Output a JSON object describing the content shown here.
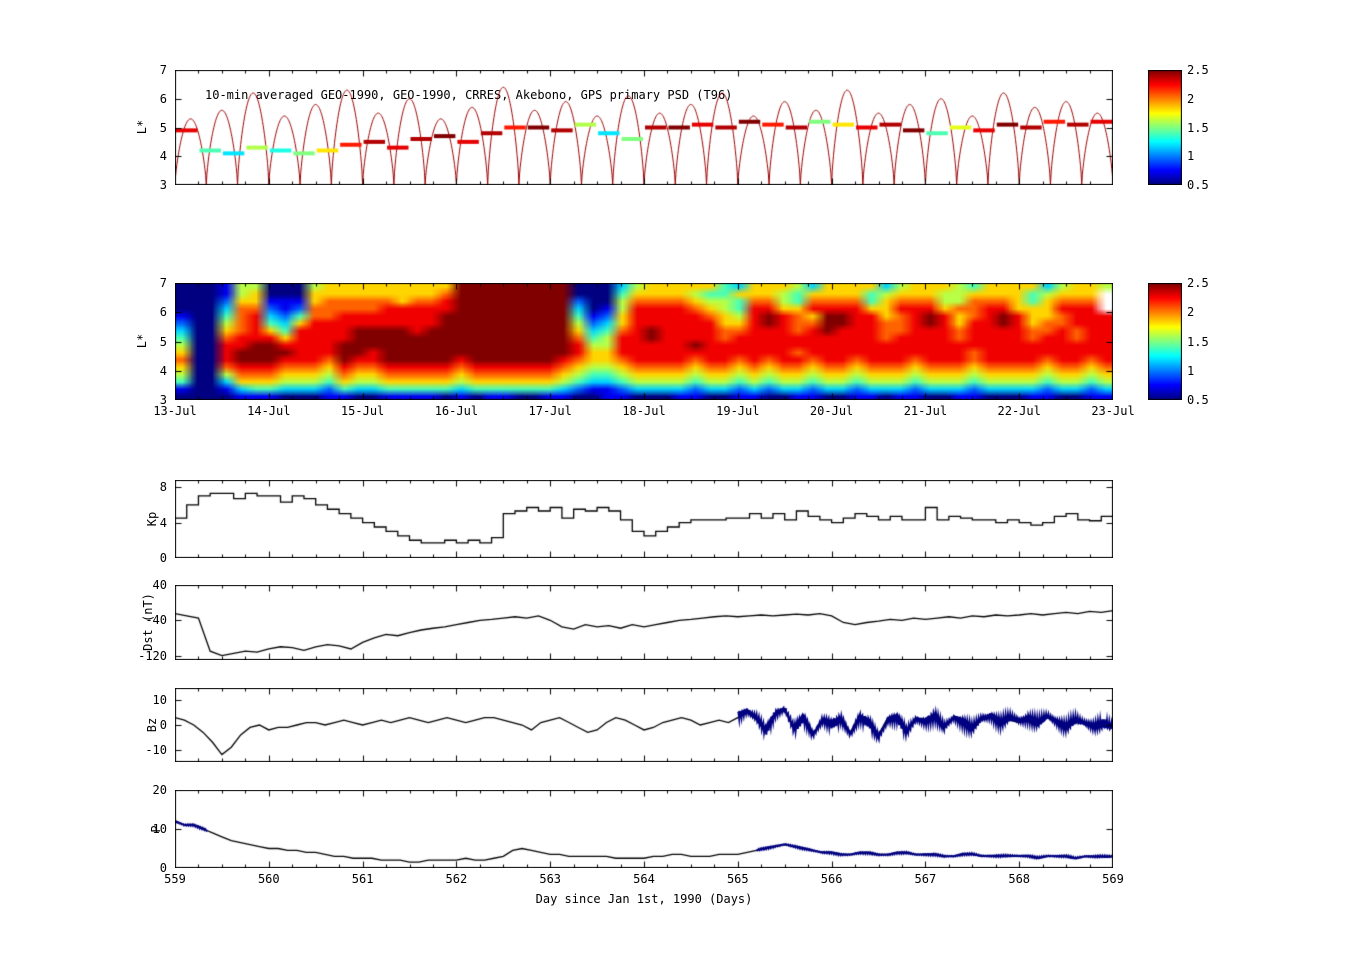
{
  "labels": {
    "panel1_title": "10-min averaged GEO-1990, GEO-1990, CRRES, Akebono, GPS  primary PSD (T96)",
    "xlabel": "Day since Jan 1st, 1990 (Days)",
    "ylabel_psd_scatter": "L*",
    "ylabel_psd_heatmap": "L*",
    "ylabel_kp": "Kp",
    "ylabel_dst": "Dst (nT)",
    "ylabel_bz": "Bz",
    "ylabel_p": "P"
  },
  "colorbar": {
    "tick_labels": [
      "2.5",
      "2",
      "1.5",
      "1",
      "0.5"
    ],
    "vmin": 0.5,
    "vmax": 2.5,
    "colormap": "jet"
  },
  "axes": {
    "xlim": [
      559,
      569
    ],
    "x_day_labels": [
      "559",
      "560",
      "561",
      "562",
      "563",
      "564",
      "565",
      "566",
      "567",
      "568",
      "569"
    ],
    "x_date_labels": [
      "13-Jul",
      "14-Jul",
      "15-Jul",
      "16-Jul",
      "17-Jul",
      "18-Jul",
      "19-Jul",
      "20-Jul",
      "21-Jul",
      "22-Jul",
      "23-Jul"
    ]
  },
  "chart_data": [
    {
      "name": "psd_scatter",
      "type": "scatter",
      "title": "10-min averaged GEO-1990, GEO-1990, CRRES, Akebono, GPS  primary PSD (T96)",
      "ylabel": "L*",
      "ylim": [
        3,
        7
      ],
      "yticks": [
        7,
        6,
        5,
        4,
        3
      ],
      "clim": [
        0.5,
        2.5
      ],
      "orbit_period_days": 0.3333,
      "orbit_peaks": [
        5.3,
        5.6,
        6.2,
        5.4,
        5.8,
        6.3,
        5.5,
        6.0,
        5.3,
        5.7,
        6.4,
        5.6,
        5.9,
        5.4,
        6.1,
        5.5,
        5.8,
        6.2,
        5.4,
        5.9,
        5.6,
        6.3,
        5.5,
        5.8,
        6.0,
        5.4,
        6.2,
        5.7,
        5.9,
        5.5
      ],
      "steps": {
        "dt_days": 0.25,
        "L": [
          4.9,
          4.2,
          4.1,
          4.3,
          4.2,
          4.1,
          4.2,
          4.4,
          4.5,
          4.3,
          4.6,
          4.7,
          4.5,
          4.8,
          5.0,
          5.0,
          4.9,
          5.1,
          4.8,
          4.6,
          5.0,
          5.0,
          5.1,
          5.0,
          5.2,
          5.1,
          5.0,
          5.2,
          5.1,
          5.0,
          5.1,
          4.9,
          4.8,
          5.0,
          4.9,
          5.1,
          5.0,
          5.2,
          5.1,
          5.2
        ],
        "psd": [
          2.3,
          1.4,
          1.2,
          1.6,
          1.3,
          1.5,
          1.8,
          2.2,
          2.4,
          2.3,
          2.4,
          2.5,
          2.3,
          2.4,
          2.2,
          2.5,
          2.4,
          1.6,
          1.2,
          1.5,
          2.4,
          2.5,
          2.3,
          2.4,
          2.5,
          2.2,
          2.4,
          1.5,
          1.8,
          2.3,
          2.4,
          2.5,
          1.4,
          1.7,
          2.3,
          2.5,
          2.4,
          2.2,
          2.4,
          2.3
        ]
      }
    },
    {
      "name": "psd_heatmap",
      "type": "heatmap",
      "ylabel": "L*",
      "ylim": [
        3,
        7
      ],
      "yticks": [
        7,
        6,
        5,
        4,
        3
      ],
      "clim": [
        0.5,
        2.5
      ],
      "value_encoding": "digit 0-9 maps linearly to PSD 0.5-2.5",
      "rows_top_to_bottom": [
        "0001550005666666666999999990003566666436665366663566654666635665",
        "000156000666666666799999999000466665446665466664566655666645666",
        "0002661116777776778999999992005777765547754777746777557 77646777",
        "0003772127777788888999999993015888876548866888866888677 88666888",
        "1004783247788888889999999994126888887658987699886789867898667888",
        "2005784368888888889999999995236888888668987799887789868898677888",
        "3006786488889999899999999996347898888778887898887788878888778788",
        "4007888688889999999999999997458898888788888888887888878888788788",
        "5008899888899999999999999998558888898888888888888888888888888888",
        "6008999988899899999999999998668888888888887888888888887888888888",
        "7008999888798899999899999987667888878878788788788878887888878878",
        "6007888777687788888788888876556777767767677677677767776777767767",
        "5005777666576677777677777765445666656656566566566656665666656656",
        "4003666555465566666566666654334555545545455455455545554555545545",
        "1001344333243344444344444432112333323323233233233323332333323323",
        "0000111000110011110101100110011000110011001100110110011000110011"
      ]
    },
    {
      "name": "kp",
      "type": "line",
      "style": "step",
      "ylabel": "Kp",
      "ylim": [
        0,
        8.8
      ],
      "yticks": [
        8,
        4,
        0
      ],
      "dt_days": 0.125,
      "t_start": 559,
      "values": [
        4.5,
        6.0,
        7.0,
        7.3,
        7.3,
        6.7,
        7.3,
        7.0,
        7.0,
        6.3,
        7.0,
        6.7,
        6.0,
        5.5,
        5.0,
        4.5,
        4.0,
        3.5,
        3.0,
        2.5,
        2.0,
        1.7,
        1.7,
        2.0,
        1.7,
        2.0,
        1.7,
        2.3,
        5.0,
        5.3,
        5.7,
        5.3,
        5.7,
        4.5,
        5.5,
        5.3,
        5.7,
        5.3,
        4.3,
        3.0,
        2.5,
        3.0,
        3.5,
        4.0,
        4.3,
        4.3,
        4.3,
        4.5,
        4.5,
        5.0,
        4.5,
        5.0,
        4.3,
        5.3,
        4.7,
        4.3,
        4.0,
        4.5,
        5.0,
        4.7,
        4.3,
        4.7,
        4.3,
        4.3,
        5.7,
        4.3,
        4.7,
        4.5,
        4.3,
        4.3,
        4.0,
        4.3,
        4.0,
        3.7,
        4.0,
        4.7,
        5.0,
        4.3,
        4.2,
        4.7
      ]
    },
    {
      "name": "dst",
      "type": "line",
      "ylabel": "Dst (nT)",
      "ylim": [
        -130,
        40
      ],
      "yticks": [
        40,
        -40,
        -120
      ],
      "dt_days": 0.125,
      "t_start": 559,
      "values": [
        -25,
        -30,
        -35,
        -110,
        -120,
        -115,
        -110,
        -112,
        -105,
        -100,
        -102,
        -108,
        -100,
        -95,
        -98,
        -105,
        -90,
        -80,
        -72,
        -75,
        -68,
        -62,
        -58,
        -55,
        -50,
        -45,
        -40,
        -38,
        -35,
        -32,
        -35,
        -30,
        -40,
        -55,
        -60,
        -50,
        -55,
        -52,
        -58,
        -50,
        -55,
        -50,
        -45,
        -40,
        -38,
        -35,
        -32,
        -30,
        -32,
        -30,
        -28,
        -30,
        -28,
        -26,
        -28,
        -25,
        -30,
        -45,
        -50,
        -45,
        -42,
        -38,
        -40,
        -35,
        -38,
        -35,
        -32,
        -35,
        -30,
        -32,
        -28,
        -30,
        -28,
        -25,
        -28,
        -25,
        -22,
        -25,
        -20,
        -22,
        -18
      ]
    },
    {
      "name": "bz",
      "type": "line",
      "ylabel": "Bz",
      "ylim": [
        -15,
        15
      ],
      "yticks": [
        10,
        0,
        -10
      ],
      "dt_days": 0.1,
      "t_start": 559,
      "values": [
        3,
        2,
        0,
        -3,
        -7,
        -12,
        -9,
        -4,
        -1,
        0,
        -2,
        -1,
        -1,
        0,
        1,
        1,
        0,
        1,
        2,
        1,
        0,
        1,
        2,
        1,
        2,
        3,
        2,
        1,
        2,
        3,
        2,
        1,
        2,
        3,
        3,
        2,
        1,
        0,
        -2,
        1,
        2,
        3,
        1,
        -1,
        -3,
        -2,
        1,
        3,
        2,
        0,
        -2,
        -1,
        1,
        2,
        3,
        2,
        0,
        1,
        2,
        1,
        3,
        5,
        2,
        -3,
        4,
        6,
        -2,
        3,
        -4,
        2,
        1,
        3,
        -3,
        4,
        2,
        -4,
        3,
        4,
        -2,
        3,
        2,
        4,
        -1,
        3,
        1,
        -2,
        2,
        3,
        0,
        2,
        1,
        2,
        0,
        3,
        1,
        -1,
        2,
        1,
        0,
        1,
        0
      ],
      "noisy_ranges": [
        [
          565.0,
          569.0
        ]
      ],
      "noise_amp": 3,
      "highlight_color": "#000080"
    },
    {
      "name": "p",
      "type": "line",
      "ylabel": "P",
      "ylim": [
        0,
        20
      ],
      "yticks": [
        20,
        10,
        0
      ],
      "dt_days": 0.1,
      "t_start": 559,
      "values": [
        12,
        11,
        11,
        10,
        9,
        8,
        7,
        6.5,
        6,
        5.5,
        5,
        5,
        4.5,
        4.5,
        4,
        4,
        3.5,
        3,
        3,
        2.5,
        2.5,
        2.5,
        2,
        2,
        2,
        1.5,
        1.5,
        2,
        2,
        2,
        2,
        2.5,
        2,
        2,
        2.5,
        3,
        4.5,
        5,
        4.5,
        4,
        3.5,
        3.5,
        3,
        3,
        3,
        3,
        3,
        2.5,
        2.5,
        2.5,
        2.5,
        3,
        3,
        3.5,
        3.5,
        3,
        3,
        3,
        3.5,
        3.5,
        3.5,
        4,
        4.5,
        5,
        5.5,
        6,
        5.5,
        5,
        4.5,
        4,
        4,
        3.5,
        3.5,
        4,
        4,
        3.5,
        3.5,
        4,
        4,
        3.5,
        3.5,
        3.5,
        3,
        3,
        3.5,
        3.5,
        3,
        3,
        3,
        3,
        3,
        3,
        2.5,
        3,
        3,
        3,
        2.5,
        3,
        3,
        3,
        3
      ],
      "noisy_ranges": [
        [
          559.0,
          559.35
        ],
        [
          565.2,
          569.0
        ]
      ],
      "noise_amp": 0.35,
      "highlight_color": "#000080"
    }
  ],
  "colors": {
    "line": "#000000",
    "orbit_line": "#990000",
    "highlight": "#000080",
    "axis": "#000000"
  }
}
